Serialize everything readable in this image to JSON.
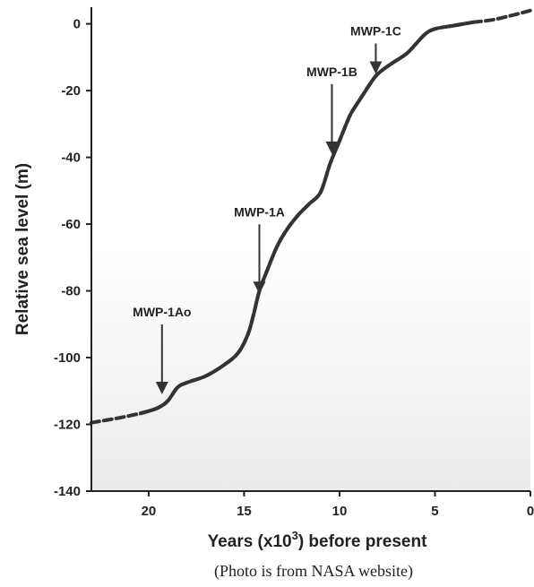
{
  "chart_data": {
    "type": "line",
    "xlabel_main": "Years (x10",
    "xlabel_sup": "3",
    "xlabel_rest": ") before present",
    "ylabel": "Relative sea level (m)",
    "xlim": [
      23,
      0
    ],
    "ylim": [
      -140,
      5
    ],
    "x_ticks": [
      20,
      15,
      10,
      5,
      0
    ],
    "y_ticks": [
      0,
      -20,
      -40,
      -60,
      -80,
      -100,
      -120,
      -140
    ],
    "series": [
      {
        "values": [
          [
            23,
            -119.5
          ],
          [
            21.5,
            -118
          ],
          [
            20.3,
            -116.5
          ],
          [
            19.5,
            -115
          ],
          [
            19,
            -113
          ],
          [
            18.5,
            -109
          ],
          [
            18,
            -107.5
          ],
          [
            17,
            -105.5
          ],
          [
            16,
            -102
          ],
          [
            15.3,
            -98.5
          ],
          [
            14.8,
            -93
          ],
          [
            14.5,
            -87
          ],
          [
            14.2,
            -80
          ],
          [
            13.8,
            -74
          ],
          [
            13.3,
            -67
          ],
          [
            12.8,
            -62
          ],
          [
            12.2,
            -57.5
          ],
          [
            11.6,
            -54
          ],
          [
            11,
            -50.5
          ],
          [
            10.5,
            -42
          ],
          [
            10,
            -35
          ],
          [
            9.5,
            -28
          ],
          [
            9.2,
            -25
          ],
          [
            8.8,
            -21.5
          ],
          [
            8.4,
            -18
          ],
          [
            8,
            -15
          ],
          [
            7.3,
            -12
          ],
          [
            6.5,
            -9
          ],
          [
            6,
            -6
          ],
          [
            5.5,
            -3
          ],
          [
            5,
            -1.5
          ],
          [
            4,
            -0.5
          ],
          [
            3,
            0.5
          ]
        ]
      },
      {
        "values": [
          [
            3,
            0.5
          ],
          [
            2,
            1.2
          ],
          [
            1,
            2.5
          ],
          [
            0,
            4
          ]
        ]
      }
    ],
    "annotations": [
      {
        "label": "MWP-1Ao",
        "x": 19.3,
        "y": -111
      },
      {
        "label": "MWP-1A",
        "x": 14.2,
        "y": -81
      },
      {
        "label": "MWP-1B",
        "x": 10.4,
        "y": -39
      },
      {
        "label": "MWP-1C",
        "x": 8.1,
        "y": -15
      }
    ],
    "caption": "(Photo is from NASA website)"
  }
}
